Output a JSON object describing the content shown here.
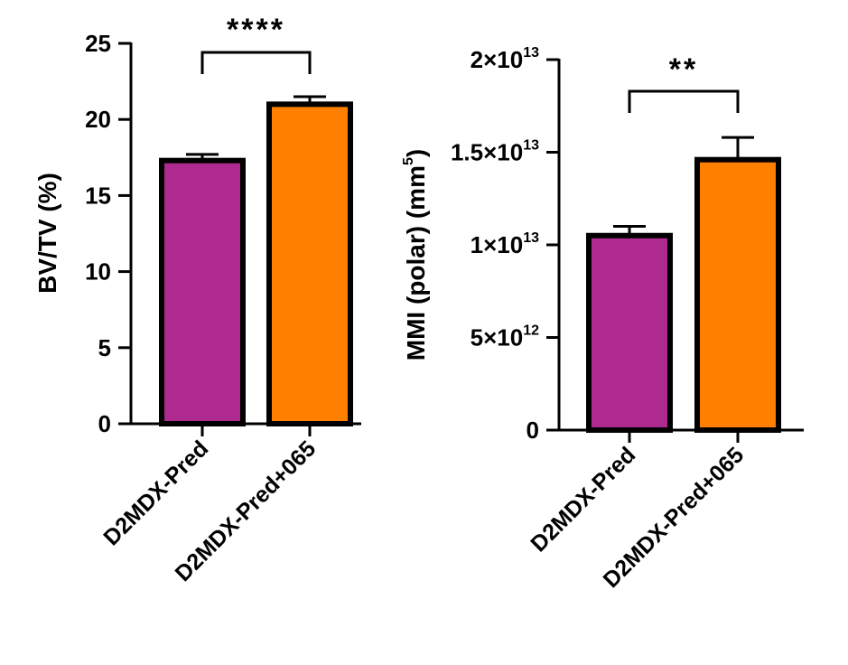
{
  "chart_data": [
    {
      "type": "bar",
      "categories": [
        "D2MDX-Pred",
        "D2MDX-Pred+065"
      ],
      "values": [
        17.3,
        21.0
      ],
      "errors": [
        0.4,
        0.5
      ],
      "colors": [
        "#ae2a8e",
        "#ff7f00"
      ],
      "ylabel": "BV/TV (%)",
      "ylim": [
        0,
        25
      ],
      "yticks": [
        0,
        5,
        10,
        15,
        20,
        25
      ],
      "ytick_labels": [
        "0",
        "5",
        "10",
        "15",
        "20",
        "25"
      ],
      "significance": "****"
    },
    {
      "type": "bar",
      "categories": [
        "D2MDX-Pred",
        "D2MDX-Pred+065"
      ],
      "values": [
        10500000000000,
        14600000000000
      ],
      "errors": [
        500000000000,
        1200000000000
      ],
      "colors": [
        "#ae2a8e",
        "#ff7f00"
      ],
      "ylabel_main": "MMI (polar) (mm",
      "ylabel_sup": "5",
      "ylabel_end": ")",
      "ylim": [
        0,
        20000000000000
      ],
      "yticks": [
        0,
        5000000000000,
        10000000000000,
        15000000000000,
        20000000000000
      ],
      "ytick_labels": [
        {
          "base": "0",
          "exp": ""
        },
        {
          "base": "5×10",
          "exp": "12"
        },
        {
          "base": "1×10",
          "exp": "13"
        },
        {
          "base": "1.5×10",
          "exp": "13"
        },
        {
          "base": "2×10",
          "exp": "13"
        }
      ],
      "significance": "**"
    }
  ]
}
